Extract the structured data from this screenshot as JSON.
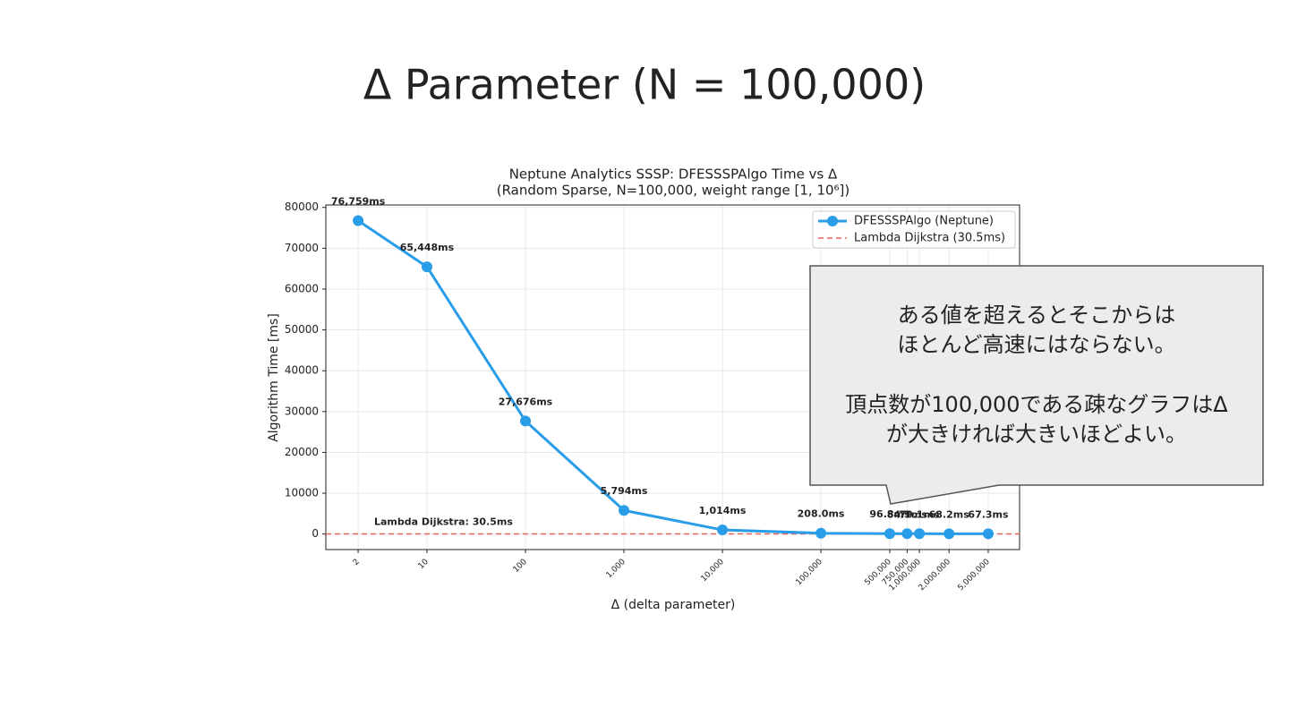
{
  "slide_title": "Δ Parameter (N = 100,000)",
  "chart_data": {
    "type": "line",
    "title": "Neptune Analytics SSSP: DFESSSPAlgo Time vs Δ",
    "subtitle": "(Random Sparse, N=100,000, weight range [1, 10⁶])",
    "x_label": "Δ (delta parameter)",
    "y_label": "Algorithm Time [ms]",
    "x": [
      2,
      10,
      100,
      1000,
      10000,
      100000,
      500000,
      750000,
      1000000,
      2000000,
      5000000
    ],
    "series": [
      {
        "name": "DFESSSPAlgo (Neptune)",
        "color": "#2a9de8",
        "values": [
          76759,
          65448,
          27676,
          5794,
          1014,
          208.0,
          96.8,
          84.7,
          79.1,
          68.2,
          67.3
        ],
        "value_labels": [
          "76,759ms",
          "65,448ms",
          "27,676ms",
          "5,794ms",
          "1,014ms",
          "208.0ms",
          "96.8ms",
          "84.7ms",
          "79.1ms",
          "68.2ms",
          "67.3ms"
        ]
      }
    ],
    "reference": {
      "name": "Lambda Dijkstra (30.5ms)",
      "value": 30.5,
      "color": "#e8625c",
      "label": "Lambda Dijkstra: 30.5ms"
    },
    "xscale": "log",
    "xlim": [
      0.94,
      10400000
    ],
    "ylim": [
      -3800,
      80600
    ],
    "xticks": [
      2,
      10,
      100,
      {
        "value": 1000,
        "label": "1,000"
      },
      {
        "value": 10000,
        "label": "10,000"
      },
      {
        "value": 100000,
        "label": "100,000"
      },
      {
        "value": 500000,
        "label": "500,000"
      },
      {
        "value": 750000,
        "label": "750,000"
      },
      {
        "value": 1000000,
        "label": "1,000,000"
      },
      {
        "value": 2000000,
        "label": "2,000,000"
      },
      {
        "value": 5000000,
        "label": "5,000,000"
      }
    ],
    "yticks": [
      0,
      10000,
      20000,
      30000,
      40000,
      50000,
      60000,
      70000,
      80000
    ],
    "grid": true,
    "legend": "upper right"
  },
  "callout": {
    "lines": [
      "ある値を超えるとそこからは",
      "ほとんど高速にはならない。",
      "頂点数が100,000である疎なグラフはΔ",
      "が大きければ大きいほどよい。"
    ]
  }
}
